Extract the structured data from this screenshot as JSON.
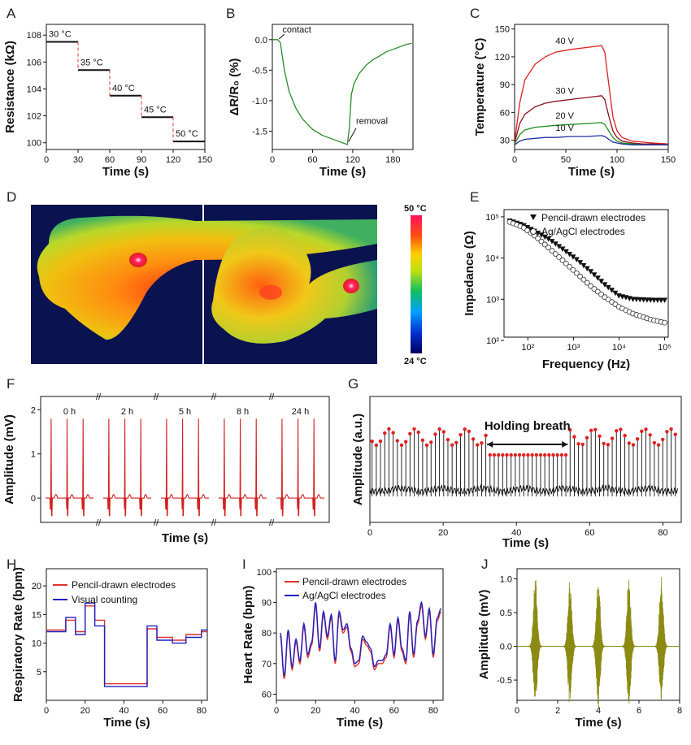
{
  "chart_data": [
    {
      "id": "A",
      "panel": "A",
      "type": "line",
      "xlabel": "Time (s)",
      "ylabel": "Resistance (kΩ)",
      "xlim": [
        0,
        150
      ],
      "ylim": [
        99.5,
        108.8
      ],
      "xticks": [
        0,
        30,
        60,
        90,
        120,
        150
      ],
      "yticks": [
        100,
        102,
        104,
        106,
        108
      ],
      "steps": [
        {
          "x0": 0,
          "x1": 30,
          "y": 107.5,
          "label": "30 °C"
        },
        {
          "x0": 30,
          "x1": 60,
          "y": 105.4,
          "label": "35 °C"
        },
        {
          "x0": 60,
          "x1": 90,
          "y": 103.5,
          "label": "40 °C"
        },
        {
          "x0": 90,
          "x1": 120,
          "y": 101.9,
          "label": "45 °C"
        },
        {
          "x0": 120,
          "x1": 150,
          "y": 100.1,
          "label": "50 °C"
        }
      ]
    },
    {
      "id": "B",
      "panel": "B",
      "type": "line",
      "xlabel": "Time (s)",
      "ylabel": "ΔR/R₀ (%)",
      "xlim": [
        0,
        210
      ],
      "ylim": [
        -1.8,
        0.25
      ],
      "xticks": [
        0,
        60,
        120,
        180
      ],
      "yticks": [
        0.0,
        -0.5,
        -1.0,
        -1.5
      ],
      "annotations": [
        "contact",
        "removal"
      ],
      "series": [
        {
          "name": "ΔR/R0",
          "color": "#2a8a2a",
          "x": [
            0,
            8,
            12,
            18,
            25,
            35,
            45,
            60,
            75,
            90,
            100,
            112,
            115,
            118,
            122,
            130,
            140,
            150,
            160,
            170,
            180,
            190,
            200,
            208
          ],
          "y": [
            0,
            0,
            -0.05,
            -0.5,
            -0.85,
            -1.12,
            -1.3,
            -1.47,
            -1.57,
            -1.63,
            -1.67,
            -1.72,
            -1.45,
            -0.9,
            -0.72,
            -0.55,
            -0.42,
            -0.33,
            -0.27,
            -0.2,
            -0.16,
            -0.12,
            -0.08,
            -0.06
          ]
        }
      ]
    },
    {
      "id": "C",
      "panel": "C",
      "type": "line",
      "xlabel": "Time (s)",
      "ylabel": "Temperature (°C)",
      "xlim": [
        0,
        150
      ],
      "ylim": [
        20,
        155
      ],
      "xticks": [
        0,
        50,
        100,
        150
      ],
      "yticks": [
        30,
        60,
        90,
        120,
        150
      ],
      "series": [
        {
          "name": "40 V",
          "color": "#e02020",
          "x": [
            0,
            5,
            10,
            20,
            30,
            40,
            55,
            70,
            85,
            88,
            92,
            96,
            100,
            105,
            115,
            125,
            135,
            150
          ],
          "y": [
            28,
            70,
            95,
            112,
            120,
            125,
            128,
            130,
            132,
            125,
            90,
            55,
            40,
            33,
            29,
            28,
            27,
            26
          ]
        },
        {
          "name": "30 V",
          "color": "#8b1020",
          "x": [
            0,
            5,
            10,
            20,
            30,
            40,
            55,
            70,
            85,
            88,
            92,
            96,
            100,
            105,
            115,
            125,
            135,
            150
          ],
          "y": [
            27,
            48,
            58,
            66,
            70,
            72,
            74,
            76,
            78,
            74,
            56,
            40,
            33,
            29,
            27,
            26,
            26,
            25
          ]
        },
        {
          "name": "20 V",
          "color": "#1e8c1e",
          "x": [
            0,
            5,
            10,
            20,
            30,
            40,
            55,
            70,
            85,
            88,
            92,
            96,
            100,
            105,
            115,
            125,
            135,
            150
          ],
          "y": [
            26,
            36,
            41,
            44,
            45,
            46,
            47,
            48,
            49,
            47,
            40,
            33,
            29,
            27,
            26,
            25,
            25,
            25
          ]
        },
        {
          "name": "10 V",
          "color": "#2030a0",
          "x": [
            0,
            5,
            10,
            20,
            30,
            40,
            55,
            70,
            85,
            88,
            92,
            96,
            100,
            105,
            115,
            125,
            135,
            150
          ],
          "y": [
            25,
            29,
            31,
            32,
            33,
            33,
            34,
            34,
            35,
            34,
            31,
            28,
            27,
            26,
            25,
            25,
            25,
            25
          ]
        }
      ]
    },
    {
      "id": "D",
      "panel": "D",
      "type": "heatmap",
      "colorbar_max_label": "50 °C",
      "colorbar_min_label": "24 °C",
      "vmin": 24,
      "vmax": 50
    },
    {
      "id": "E",
      "panel": "E",
      "type": "scatter",
      "xlabel": "Frequency (Hz)",
      "ylabel": "Impedance (Ω)",
      "xscale": "log",
      "yscale": "log",
      "xlim": [
        30,
        120000
      ],
      "ylim": [
        120,
        150000
      ],
      "xticks": [
        100,
        1000,
        10000,
        100000
      ],
      "xticklabels": [
        "10²",
        "10³",
        "10⁴",
        "10⁵"
      ],
      "yticks": [
        100,
        1000,
        10000,
        100000
      ],
      "yticklabels": [
        "10²",
        "10³",
        "10⁴",
        "10⁵"
      ],
      "series": [
        {
          "name": "Pencil-drawn electrodes",
          "marker": "filled-triangle-down",
          "x": [
            40,
            80,
            150,
            300,
            600,
            1200,
            2500,
            5000,
            10000,
            20000,
            50000,
            100000
          ],
          "y": [
            80000,
            62000,
            43000,
            28000,
            16000,
            9000,
            4500,
            2200,
            1200,
            1000,
            950,
            950
          ]
        },
        {
          "name": "Ag/AgCl electrodes",
          "marker": "open-circle",
          "x": [
            40,
            80,
            150,
            300,
            600,
            1200,
            2500,
            5000,
            10000,
            20000,
            50000,
            100000
          ],
          "y": [
            75000,
            55000,
            33000,
            17000,
            8500,
            4200,
            2000,
            1100,
            650,
            450,
            320,
            270
          ]
        }
      ]
    },
    {
      "id": "F",
      "panel": "F",
      "type": "line",
      "xlabel": "Time (s)",
      "ylabel": "Amplitude (mV)",
      "ylim": [
        -0.55,
        2.3
      ],
      "yticks": [
        0,
        1,
        2
      ],
      "segment_labels": [
        "0 h",
        "2 h",
        "5 h",
        "8 h",
        "24 h"
      ],
      "beat_peak_mV": 1.8,
      "beats_per_segment": 3,
      "color": "#d42020"
    },
    {
      "id": "G",
      "panel": "G",
      "type": "line",
      "xlabel": "Time (s)",
      "ylabel": "Amplitude (a.u.)",
      "xlim": [
        0,
        85
      ],
      "xticks": [
        0,
        20,
        40,
        60,
        80
      ],
      "annotation": "Holding breath",
      "hold_interval": [
        32,
        54
      ]
    },
    {
      "id": "H",
      "panel": "H",
      "type": "line",
      "xlabel": "Time (s)",
      "ylabel": "Respiratory Rate (bpm)",
      "xlim": [
        0,
        83
      ],
      "ylim": [
        0,
        23
      ],
      "xticks": [
        0,
        20,
        40,
        60,
        80
      ],
      "yticks": [
        5,
        10,
        15,
        20
      ],
      "series": [
        {
          "name": "Pencil-drawn electrodes",
          "color": "#e03030",
          "x": [
            0,
            10,
            10,
            15,
            15,
            20,
            20,
            25,
            25,
            30,
            30,
            52,
            52,
            57,
            57,
            65,
            65,
            72,
            72,
            80,
            80,
            83
          ],
          "y": [
            12.3,
            12.3,
            14.0,
            14.0,
            12.0,
            12.0,
            16.5,
            16.5,
            14.0,
            14.0,
            2.9,
            2.9,
            12.5,
            12.5,
            11.0,
            11.0,
            10.5,
            10.5,
            11.5,
            11.5,
            12.0,
            12.0
          ]
        },
        {
          "name": "Visual counting",
          "color": "#2020c0",
          "x": [
            0,
            10,
            10,
            15,
            15,
            20,
            20,
            25,
            25,
            30,
            30,
            52,
            52,
            57,
            57,
            65,
            65,
            72,
            72,
            80,
            80,
            83
          ],
          "y": [
            12.0,
            12.0,
            14.5,
            14.5,
            11.5,
            11.5,
            17.0,
            17.0,
            13.0,
            13.0,
            2.4,
            2.4,
            13.0,
            13.0,
            10.5,
            10.5,
            10.0,
            10.0,
            11.0,
            11.0,
            12.3,
            12.3
          ]
        }
      ]
    },
    {
      "id": "I",
      "panel": "I",
      "type": "line",
      "xlabel": "Time (s)",
      "ylabel": "Heart Rate (bpm)",
      "xlim": [
        0,
        85
      ],
      "ylim": [
        58,
        101
      ],
      "xticks": [
        0,
        20,
        40,
        60,
        80
      ],
      "yticks": [
        60,
        70,
        80,
        90,
        100
      ],
      "series": [
        {
          "name": "Pencil-drawn electrodes",
          "color": "#e03030",
          "x": [
            2,
            4,
            6,
            8,
            10,
            12,
            14,
            16,
            18,
            20,
            22,
            24,
            26,
            28,
            30,
            32,
            34,
            36,
            38,
            40,
            42,
            44,
            46,
            48,
            50,
            52,
            54,
            56,
            58,
            60,
            62,
            64,
            66,
            68,
            70,
            72,
            74,
            76,
            78,
            80,
            82,
            84
          ],
          "y": [
            79,
            65,
            80,
            68,
            77,
            70,
            82,
            72,
            76,
            89,
            74,
            86,
            78,
            85,
            70,
            86,
            80,
            82,
            74,
            69,
            70,
            78,
            76,
            74,
            68,
            70,
            70,
            72,
            82,
            72,
            84,
            74,
            70,
            86,
            72,
            83,
            89,
            78,
            87,
            72,
            84,
            87
          ]
        },
        {
          "name": "Ag/AgCl electrodes",
          "color": "#2020c0",
          "x": [
            2,
            4,
            6,
            8,
            10,
            12,
            14,
            16,
            18,
            20,
            22,
            24,
            26,
            28,
            30,
            32,
            34,
            36,
            38,
            40,
            42,
            44,
            46,
            48,
            50,
            52,
            54,
            56,
            58,
            60,
            62,
            64,
            66,
            68,
            70,
            72,
            74,
            76,
            78,
            80,
            82,
            84
          ],
          "y": [
            80,
            66,
            81,
            69,
            78,
            71,
            83,
            73,
            77,
            90,
            75,
            87,
            79,
            86,
            71,
            87,
            81,
            83,
            75,
            70,
            71,
            79,
            77,
            75,
            69,
            71,
            71,
            73,
            83,
            73,
            85,
            75,
            71,
            87,
            73,
            84,
            90,
            79,
            88,
            73,
            85,
            88
          ]
        }
      ]
    },
    {
      "id": "J",
      "panel": "J",
      "type": "line",
      "xlabel": "Time (s)",
      "ylabel": "Amplitude (mV)",
      "xlim": [
        0,
        8
      ],
      "ylim": [
        -0.8,
        1.15
      ],
      "xticks": [
        0,
        2,
        4,
        6,
        8
      ],
      "yticks": [
        -0.5,
        0.0,
        0.5,
        1.0
      ],
      "bursts": [
        0.9,
        2.6,
        4.0,
        5.5,
        7.1
      ],
      "color": "#8b8b14"
    }
  ]
}
